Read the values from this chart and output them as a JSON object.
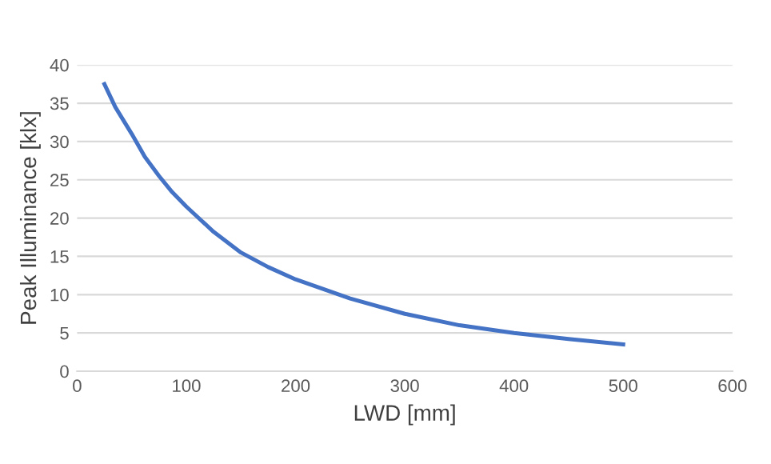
{
  "chart_data": {
    "type": "line",
    "xlabel": "LWD [mm]",
    "ylabel": "Peak Illuminance [klx]",
    "x": [
      25,
      35,
      50,
      62,
      75,
      87,
      100,
      125,
      150,
      175,
      200,
      250,
      300,
      350,
      400,
      450,
      500
    ],
    "series": [
      {
        "color": "#4472c4",
        "values": [
          37.5,
          34.5,
          31,
          28,
          25.5,
          23.4,
          21.5,
          18.2,
          15.5,
          13.6,
          12,
          9.5,
          7.5,
          6,
          5,
          4.2,
          3.5
        ]
      }
    ],
    "xlim": [
      0,
      600
    ],
    "xticks": [
      0,
      100,
      200,
      300,
      400,
      500,
      600
    ],
    "ylim": [
      0,
      40
    ],
    "yticks": [
      0,
      5,
      10,
      15,
      20,
      25,
      30,
      35,
      40
    ],
    "grid": "y",
    "marker": "none",
    "line_style": "solid",
    "legend": false
  }
}
